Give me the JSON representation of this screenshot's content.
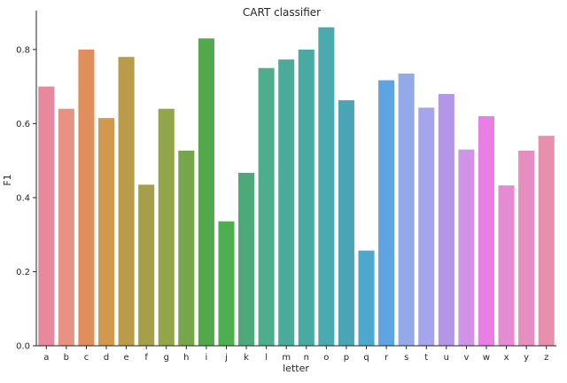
{
  "chart_data": {
    "type": "bar",
    "title": "CART classifier",
    "xlabel": "letter",
    "ylabel": "F1",
    "ylim": [
      0,
      0.905
    ],
    "yticks": [
      0.0,
      0.2,
      0.4,
      0.6,
      0.8
    ],
    "ytick_labels": [
      "0.0",
      "0.2",
      "0.4",
      "0.6",
      "0.8"
    ],
    "grid": false,
    "categories": [
      "a",
      "b",
      "c",
      "d",
      "e",
      "f",
      "g",
      "h",
      "i",
      "j",
      "k",
      "l",
      "m",
      "n",
      "o",
      "p",
      "q",
      "r",
      "s",
      "t",
      "u",
      "v",
      "w",
      "x",
      "y",
      "z"
    ],
    "values": [
      0.7,
      0.64,
      0.8,
      0.615,
      0.78,
      0.435,
      0.64,
      0.527,
      0.83,
      0.336,
      0.467,
      0.75,
      0.773,
      0.8,
      0.86,
      0.663,
      0.257,
      0.717,
      0.735,
      0.643,
      0.68,
      0.53,
      0.62,
      0.433,
      0.527,
      0.567
    ],
    "colors": [
      "#e8889d",
      "#e89283",
      "#e08f5c",
      "#d1984e",
      "#b99b4a",
      "#a59e4a",
      "#92a649",
      "#76a54a",
      "#53a84b",
      "#4daf50",
      "#4ea97a",
      "#4ead8c",
      "#4aab9a",
      "#49a9a3",
      "#4aaab0",
      "#4aa6b6",
      "#4da8cd",
      "#5ea4e2",
      "#93a9e8",
      "#a6a4ec",
      "#b396e8",
      "#cf94e8",
      "#e97fe4",
      "#e48bd3",
      "#e58ebf",
      "#e88fae"
    ]
  }
}
